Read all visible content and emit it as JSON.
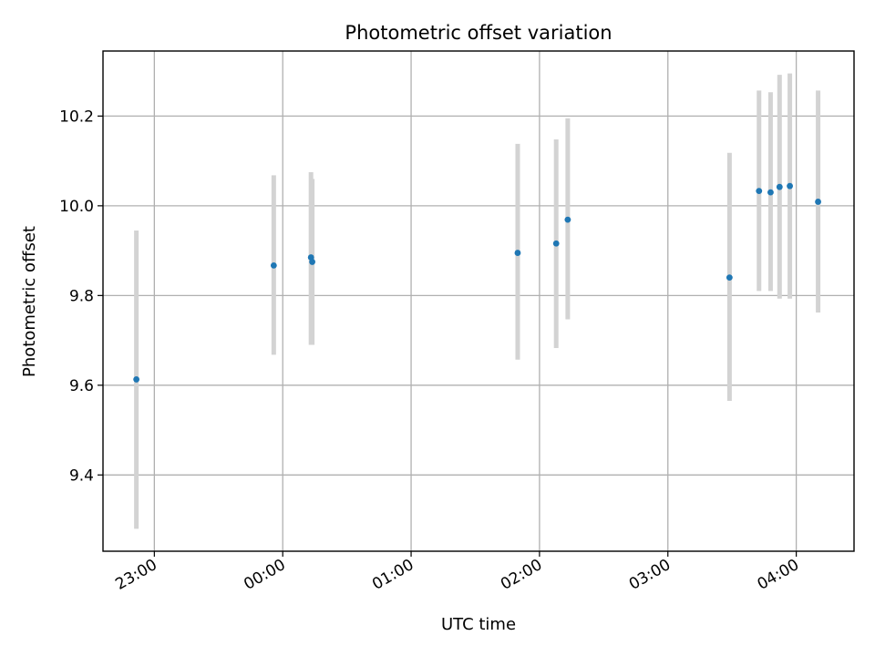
{
  "chart_data": {
    "type": "scatter",
    "title": "Photometric offset variation",
    "xlabel": "UTC time",
    "ylabel": "Photometric offset",
    "x_unit": "hours (UTC, relative to 00:00)",
    "xlim": [
      -1.4,
      4.45
    ],
    "ylim": [
      9.23,
      10.345
    ],
    "x_ticks": [
      -1,
      0,
      1,
      2,
      3,
      4
    ],
    "x_tick_labels": [
      "23:00",
      "00:00",
      "01:00",
      "02:00",
      "03:00",
      "04:00"
    ],
    "y_ticks": [
      9.4,
      9.6,
      9.8,
      10.0,
      10.2
    ],
    "y_tick_labels": [
      "9.4",
      "9.6",
      "9.8",
      "10.0",
      "10.2"
    ],
    "grid": true,
    "marker_color": "#1f77b4",
    "errorbar_color": "#d3d3d3",
    "points": [
      {
        "x": -1.14,
        "y": 9.613,
        "ylow": 9.28,
        "yhigh": 9.945
      },
      {
        "x": -0.07,
        "y": 9.867,
        "ylow": 9.668,
        "yhigh": 10.068
      },
      {
        "x": 0.22,
        "y": 9.885,
        "ylow": 9.69,
        "yhigh": 10.075
      },
      {
        "x": 0.23,
        "y": 9.875,
        "ylow": 9.69,
        "yhigh": 10.06
      },
      {
        "x": 1.83,
        "y": 9.895,
        "ylow": 9.657,
        "yhigh": 10.138
      },
      {
        "x": 2.13,
        "y": 9.916,
        "ylow": 9.683,
        "yhigh": 10.148
      },
      {
        "x": 2.22,
        "y": 9.969,
        "ylow": 9.747,
        "yhigh": 10.195
      },
      {
        "x": 3.48,
        "y": 9.84,
        "ylow": 9.565,
        "yhigh": 10.118
      },
      {
        "x": 3.71,
        "y": 10.033,
        "ylow": 9.81,
        "yhigh": 10.257
      },
      {
        "x": 3.8,
        "y": 10.03,
        "ylow": 9.81,
        "yhigh": 10.253
      },
      {
        "x": 3.87,
        "y": 10.042,
        "ylow": 9.793,
        "yhigh": 10.292
      },
      {
        "x": 3.95,
        "y": 10.044,
        "ylow": 9.793,
        "yhigh": 10.295
      },
      {
        "x": 4.17,
        "y": 10.009,
        "ylow": 9.762,
        "yhigh": 10.257
      }
    ]
  }
}
